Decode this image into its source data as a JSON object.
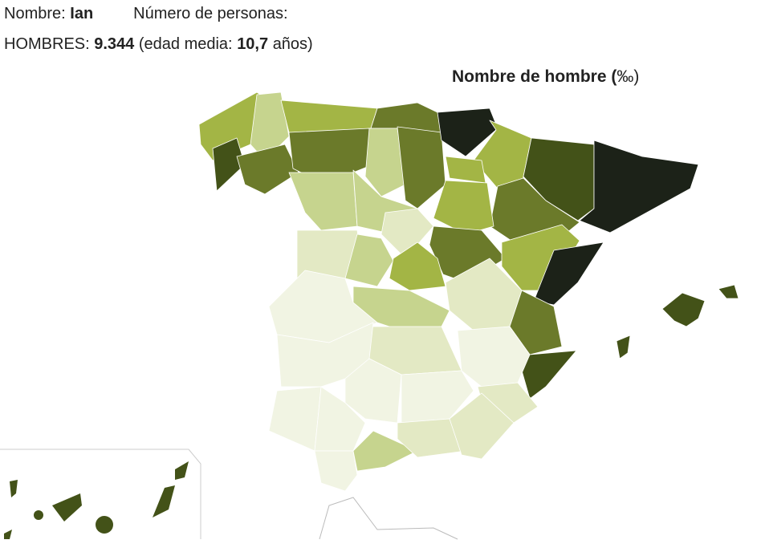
{
  "header": {
    "name_label": "Nombre:",
    "name": "Ian",
    "count_label": "Número de personas:"
  },
  "stats": {
    "label": "HOMBRES:",
    "count": "9.344",
    "age_label": "(edad media:",
    "age": "10,7",
    "age_unit": "años)"
  },
  "map": {
    "title": "Nombre de hombre (",
    "unit": "‰",
    "title_close": ")"
  }
}
